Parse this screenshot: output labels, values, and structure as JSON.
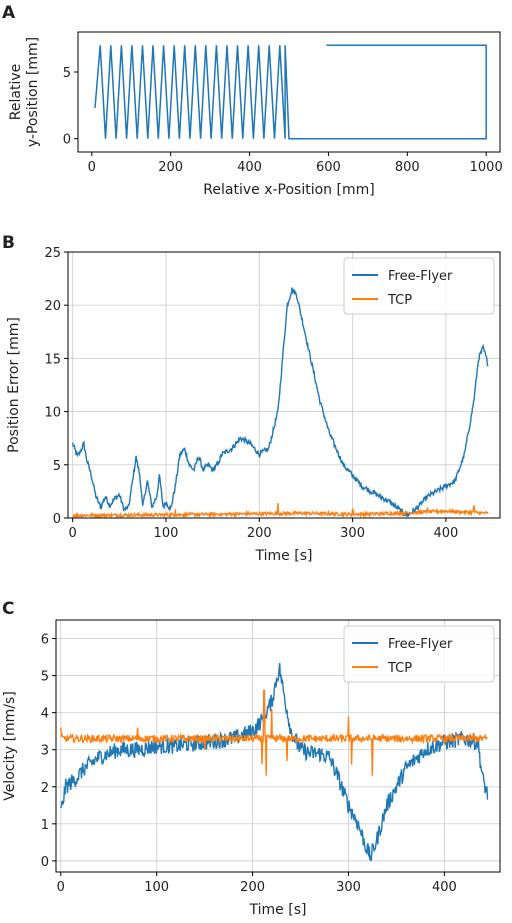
{
  "chart_data": [
    {
      "panel": "A",
      "type": "line",
      "xlabel": "Relative x-Position [mm]",
      "ylabel": [
        "Relative",
        "y-Position [mm]"
      ],
      "xlim": [
        -35,
        1035
      ],
      "ylim": [
        -1,
        8
      ],
      "xticks": [
        0,
        200,
        400,
        600,
        800,
        1000
      ],
      "yticks": [
        0,
        5
      ],
      "grid": false,
      "series": [
        {
          "color": "#1f77b4",
          "zigzag": {
            "x_start": 8,
            "x_end": 490,
            "cycles": 18,
            "y_low": 0,
            "y_high": 7
          },
          "path": [
            [
              490,
              7
            ],
            [
              500,
              0
            ],
            [
              1000,
              0
            ],
            [
              1000,
              7
            ],
            [
              595,
              7
            ]
          ]
        }
      ]
    },
    {
      "panel": "B",
      "type": "line",
      "xlabel": "Time [s]",
      "ylabel": "Position Error [mm]",
      "xlim": [
        -5,
        458
      ],
      "ylim": [
        0,
        25
      ],
      "xticks": [
        0,
        100,
        200,
        300,
        400
      ],
      "yticks": [
        0,
        5,
        10,
        15,
        20,
        25
      ],
      "grid": true,
      "legend": "top-right",
      "series": [
        {
          "name": "Free-Flyer",
          "color": "#1f77b4",
          "noise": 0.25,
          "points": [
            [
              0,
              7
            ],
            [
              5,
              5.8
            ],
            [
              8,
              6.2
            ],
            [
              12,
              7
            ],
            [
              15,
              5.5
            ],
            [
              20,
              4
            ],
            [
              25,
              2
            ],
            [
              30,
              1
            ],
            [
              35,
              2
            ],
            [
              40,
              1.2
            ],
            [
              45,
              1.8
            ],
            [
              50,
              2.2
            ],
            [
              55,
              0.8
            ],
            [
              60,
              1
            ],
            [
              65,
              4
            ],
            [
              68,
              5.7
            ],
            [
              72,
              4
            ],
            [
              75,
              1
            ],
            [
              80,
              3.5
            ],
            [
              85,
              1
            ],
            [
              90,
              2
            ],
            [
              93,
              4
            ],
            [
              97,
              1
            ],
            [
              100,
              1.5
            ],
            [
              105,
              0.8
            ],
            [
              110,
              3
            ],
            [
              115,
              6
            ],
            [
              120,
              6.5
            ],
            [
              125,
              5
            ],
            [
              130,
              4.5
            ],
            [
              135,
              5.8
            ],
            [
              140,
              4.5
            ],
            [
              145,
              5
            ],
            [
              150,
              4.5
            ],
            [
              155,
              5
            ],
            [
              160,
              6
            ],
            [
              170,
              6.5
            ],
            [
              180,
              7.5
            ],
            [
              190,
              7
            ],
            [
              200,
              6
            ],
            [
              210,
              6.5
            ],
            [
              220,
              10
            ],
            [
              225,
              15
            ],
            [
              230,
              20
            ],
            [
              235,
              21.5
            ],
            [
              240,
              21
            ],
            [
              245,
              19
            ],
            [
              255,
              15
            ],
            [
              265,
              11
            ],
            [
              275,
              8
            ],
            [
              290,
              5
            ],
            [
              300,
              4
            ],
            [
              310,
              3
            ],
            [
              320,
              2.5
            ],
            [
              330,
              2
            ],
            [
              340,
              1.5
            ],
            [
              350,
              0.8
            ],
            [
              355,
              0.4
            ],
            [
              360,
              0.3
            ],
            [
              370,
              1
            ],
            [
              380,
              2
            ],
            [
              390,
              2.5
            ],
            [
              400,
              3
            ],
            [
              410,
              3.5
            ],
            [
              420,
              6
            ],
            [
              430,
              11
            ],
            [
              435,
              15
            ],
            [
              440,
              16
            ],
            [
              445,
              14.5
            ]
          ]
        },
        {
          "name": "TCP",
          "color": "#ff7f0e",
          "noise": 0.15,
          "points": [
            [
              0,
              0.25
            ],
            [
              100,
              0.3
            ],
            [
              200,
              0.4
            ],
            [
              250,
              0.45
            ],
            [
              300,
              0.35
            ],
            [
              350,
              0.45
            ],
            [
              400,
              0.65
            ],
            [
              445,
              0.45
            ]
          ],
          "spikes": [
            [
              220,
              1.4
            ],
            [
              380,
              1.0
            ],
            [
              430,
              1.1
            ],
            [
              110,
              0.8
            ],
            [
              300,
              0.9
            ]
          ]
        }
      ]
    },
    {
      "panel": "C",
      "type": "line",
      "xlabel": "Time [s]",
      "ylabel": "Velocity [mm/s]",
      "xlim": [
        -5,
        458
      ],
      "ylim": [
        -0.3,
        6.5
      ],
      "xticks": [
        0,
        100,
        200,
        300,
        400
      ],
      "yticks": [
        0,
        1,
        2,
        3,
        4,
        5,
        6
      ],
      "grid": true,
      "legend": "top-right",
      "series": [
        {
          "name": "Free-Flyer",
          "color": "#1f77b4",
          "noise": 0.22,
          "points": [
            [
              0,
              1.3
            ],
            [
              5,
              2
            ],
            [
              15,
              2.2
            ],
            [
              25,
              2.5
            ],
            [
              40,
              2.8
            ],
            [
              60,
              3
            ],
            [
              80,
              3
            ],
            [
              100,
              3.1
            ],
            [
              120,
              3.1
            ],
            [
              150,
              3.2
            ],
            [
              180,
              3.3
            ],
            [
              200,
              3.5
            ],
            [
              210,
              3.8
            ],
            [
              220,
              4.3
            ],
            [
              225,
              4.9
            ],
            [
              228,
              5.2
            ],
            [
              232,
              4.6
            ],
            [
              240,
              3.5
            ],
            [
              250,
              3
            ],
            [
              260,
              2.9
            ],
            [
              270,
              2.9
            ],
            [
              280,
              2.8
            ],
            [
              290,
              2.2
            ],
            [
              300,
              1.5
            ],
            [
              310,
              1
            ],
            [
              318,
              0.4
            ],
            [
              323,
              0.1
            ],
            [
              330,
              0.6
            ],
            [
              340,
              1.5
            ],
            [
              360,
              2.5
            ],
            [
              380,
              3
            ],
            [
              400,
              3.2
            ],
            [
              420,
              3.3
            ],
            [
              435,
              3.2
            ],
            [
              440,
              2.2
            ],
            [
              445,
              1.8
            ]
          ]
        },
        {
          "name": "TCP",
          "color": "#ff7f0e",
          "noise": 0.1,
          "points": [
            [
              0,
              3.3
            ],
            [
              445,
              3.3
            ]
          ],
          "spikes": [
            [
              0,
              3.6
            ],
            [
              212,
              4.6
            ],
            [
              214,
              2.3
            ],
            [
              210,
              2.6
            ],
            [
              220,
              4.1
            ],
            [
              236,
              2.7
            ],
            [
              300,
              3.9
            ],
            [
              303,
              2.6
            ],
            [
              325,
              2.3
            ],
            [
              80,
              3.6
            ],
            [
              150,
              3.0
            ]
          ]
        }
      ]
    }
  ]
}
